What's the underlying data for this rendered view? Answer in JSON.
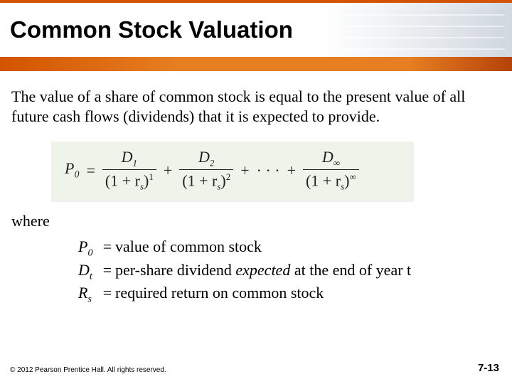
{
  "header": {
    "title": "Common Stock Valuation",
    "top_stripe_color": "#d35400",
    "bottom_stripe_color": "#e67e22"
  },
  "intro": "The value of a share of common stock is equal to the present value of all future cash flows (dividends) that it is expected to provide.",
  "formula": {
    "lhs_var": "P",
    "lhs_sub": "0",
    "terms": [
      {
        "num_var": "D",
        "num_sub": "1",
        "den_base": "(1 + r",
        "den_sub": "s",
        "den_close": ")",
        "den_sup": "1"
      },
      {
        "num_var": "D",
        "num_sub": "2",
        "den_base": "(1 + r",
        "den_sub": "s",
        "den_close": ")",
        "den_sup": "2"
      }
    ],
    "ellipsis": "· · ·",
    "last_term": {
      "num_var": "D",
      "num_sub": "∞",
      "den_base": "(1 + r",
      "den_sub": "s",
      "den_close": ")",
      "den_sup": "∞"
    },
    "background_color": "#eef4ea"
  },
  "where_label": "where",
  "definitions": [
    {
      "sym": "P",
      "sub": "0",
      "eq": "=",
      "text_pre": "value of common stock",
      "ital": "",
      "text_post": ""
    },
    {
      "sym": "D",
      "sub": "t",
      "eq": "=",
      "text_pre": "per-share dividend ",
      "ital": "expected",
      "text_post": " at the end of year t"
    },
    {
      "sym": "R",
      "sub": "s",
      "eq": "=",
      "text_pre": "required return on common stock",
      "ital": "",
      "text_post": ""
    }
  ],
  "footer": {
    "copyright": "© 2012 Pearson Prentice Hall. All rights reserved.",
    "page": "7-13"
  },
  "typography": {
    "title_font": "Arial",
    "title_size_pt": 25,
    "body_font": "Times New Roman",
    "body_size_pt": 17
  }
}
